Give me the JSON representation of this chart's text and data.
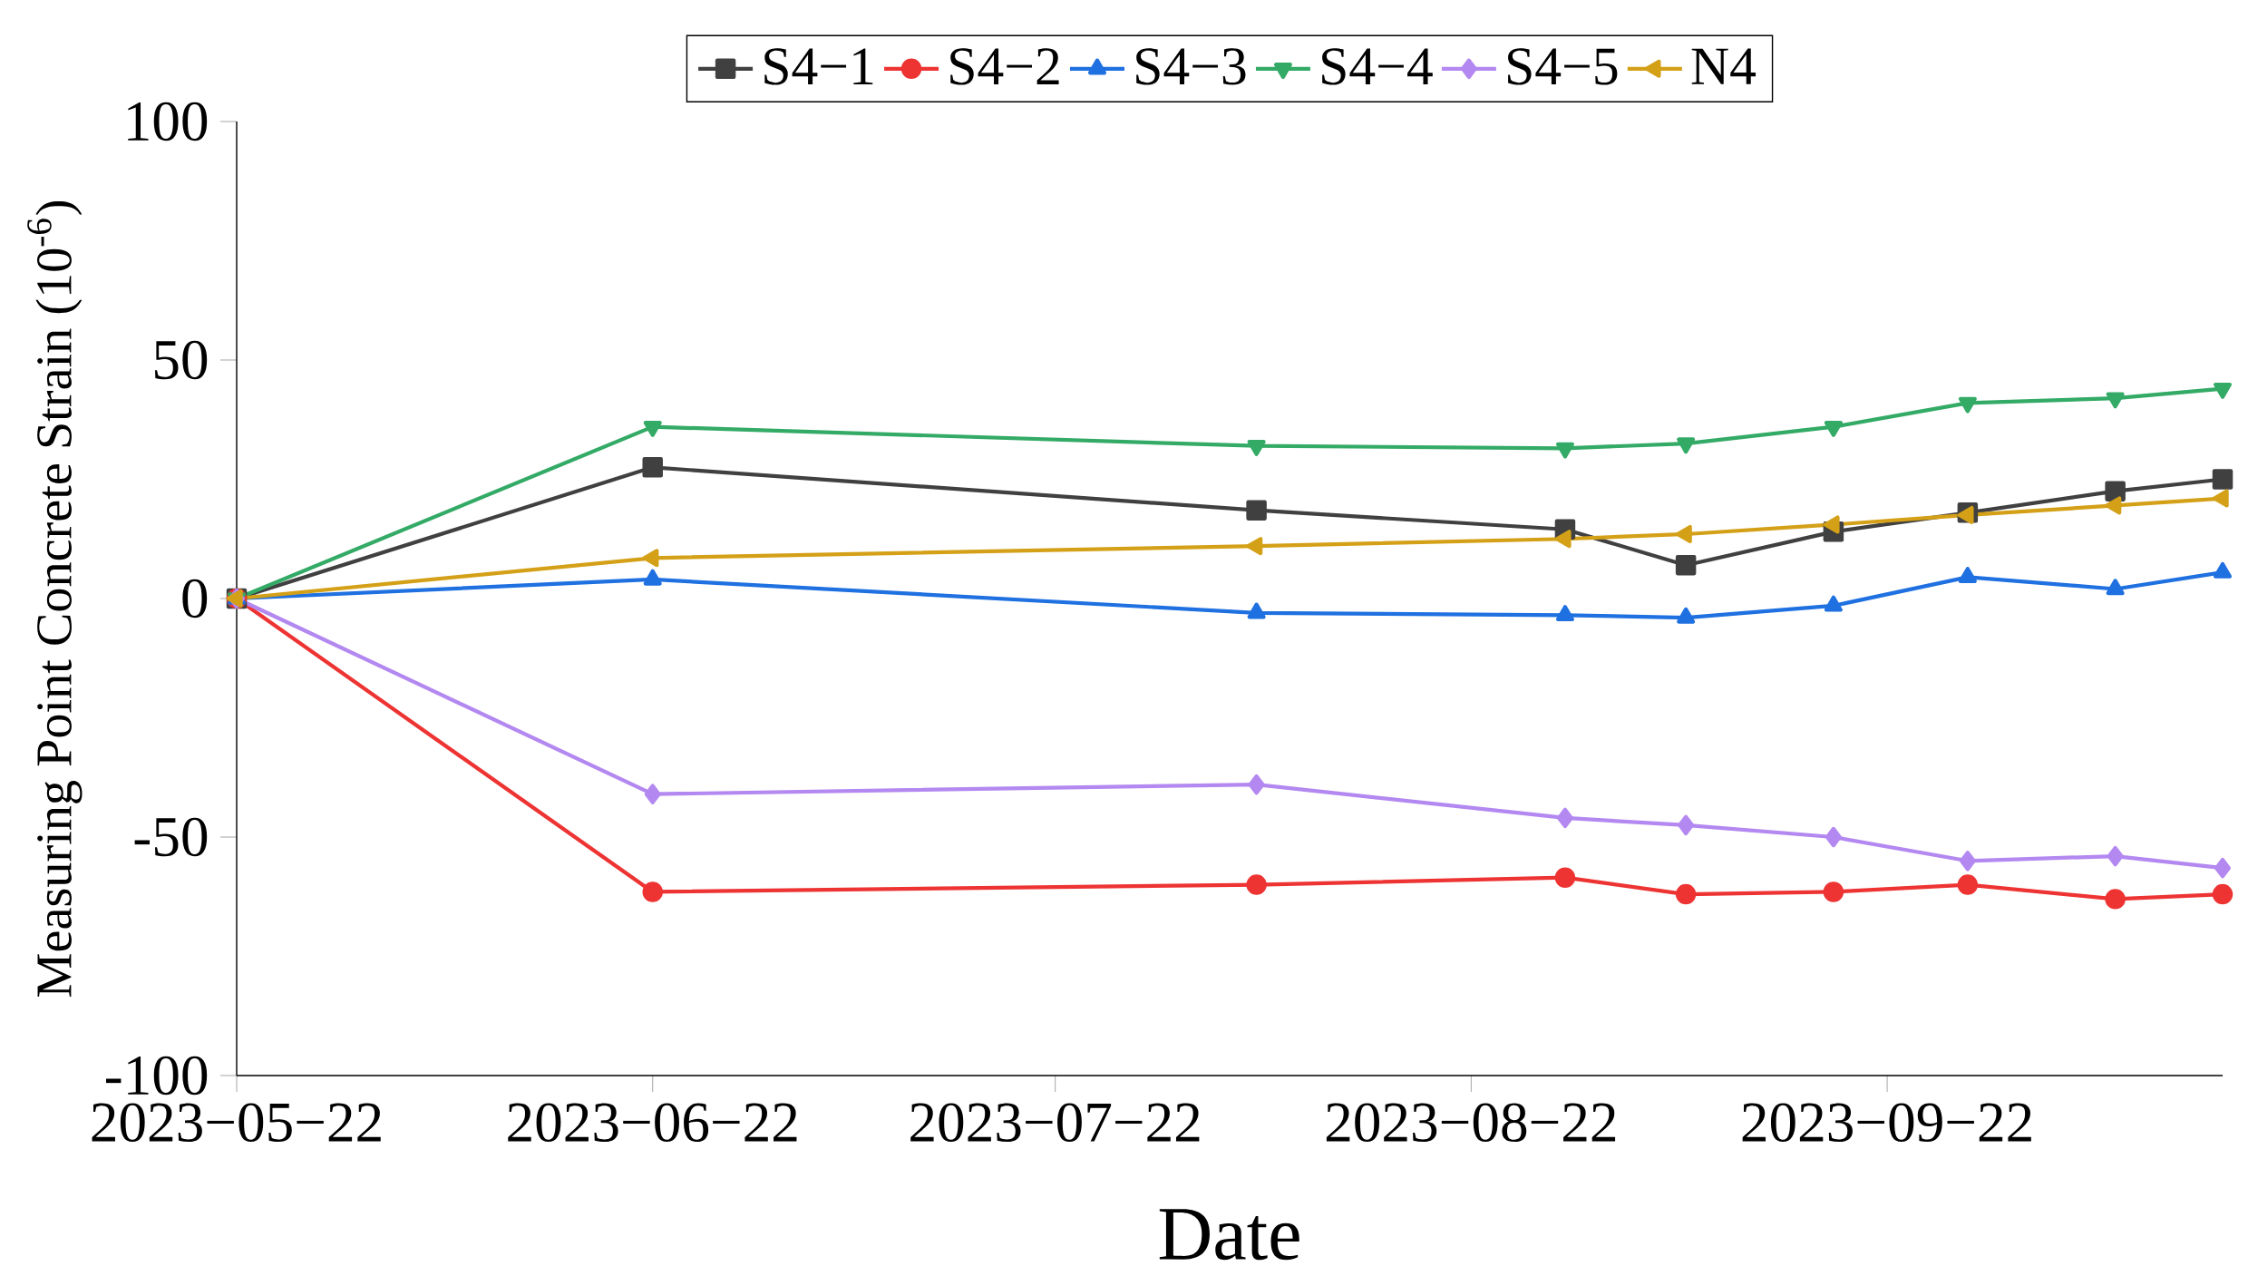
{
  "chart_data": {
    "type": "line",
    "xlabel": "Date",
    "ylabel": "Measuring Point Concrete Strain (10$^{-6}$)",
    "x": [
      "2023-05-22",
      "2023-06-22",
      "2023-08-06",
      "2023-08-29",
      "2023-09-07",
      "2023-09-18",
      "2023-09-28",
      "2023-10-09",
      "2023-10-17"
    ],
    "xlim": [
      "2023-05-22",
      "2023-10-17"
    ],
    "xticks": [
      {
        "value": "2023-05-22",
        "label": "2023−05−22"
      },
      {
        "value": "2023-06-22",
        "label": "2023−06−22"
      },
      {
        "value": "2023-07-22",
        "label": "2023−07−22"
      },
      {
        "value": "2023-08-22",
        "label": "2023−08−22"
      },
      {
        "value": "2023-09-22",
        "label": "2023−09−22"
      }
    ],
    "ylim": [
      -100,
      100
    ],
    "yticks": [
      -100,
      -50,
      0,
      50,
      100
    ],
    "legend": "top",
    "series": [
      {
        "name": "S4−1",
        "color": "#404040",
        "marker": "square",
        "values": [
          0,
          27.5,
          18.5,
          14.5,
          7,
          14,
          18,
          22.5,
          25
        ]
      },
      {
        "name": "S4−2",
        "color": "#ee3333",
        "marker": "circle",
        "values": [
          0,
          -61.5,
          -60,
          -58.5,
          -62,
          -61.5,
          -60,
          -63,
          -62
        ]
      },
      {
        "name": "S4−3",
        "color": "#1f70e0",
        "marker": "triangle",
        "values": [
          0,
          4,
          -3,
          -3.5,
          -4,
          -1.5,
          4.5,
          2,
          5.5
        ]
      },
      {
        "name": "S4−4",
        "color": "#33aa66",
        "marker": "triangle-down",
        "values": [
          0,
          36,
          32,
          31.5,
          32.5,
          36,
          41,
          42,
          44
        ]
      },
      {
        "name": "S4−5",
        "color": "#b388f0",
        "marker": "diamond",
        "values": [
          0,
          -41,
          -39,
          -46,
          -47.5,
          -50,
          -55,
          -54,
          -56.5
        ]
      },
      {
        "name": "N4",
        "color": "#d4a017",
        "marker": "triangle-left",
        "values": [
          0,
          8.5,
          11,
          12.5,
          13.5,
          15.5,
          17.5,
          19.5,
          21
        ]
      }
    ]
  }
}
